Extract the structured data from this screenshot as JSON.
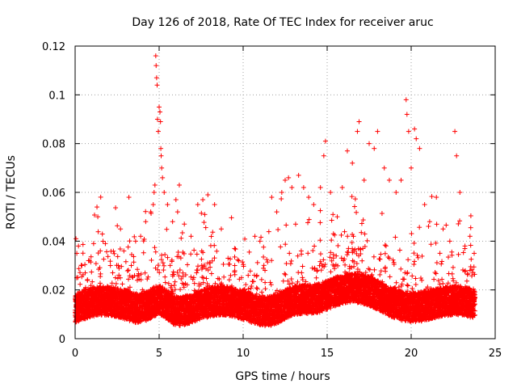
{
  "chart_data": {
    "type": "scatter",
    "title": "Day 126 of 2018, Rate Of TEC Index for receiver aruc",
    "xlabel": "GPS time / hours",
    "ylabel": "ROTI / TECUs",
    "xlim": [
      0,
      25
    ],
    "ylim": [
      0,
      0.12
    ],
    "xticks": [
      "0",
      "5",
      "10",
      "15",
      "20",
      "25"
    ],
    "yticks": [
      "0",
      "0.02",
      "0.04",
      "0.06",
      "0.08",
      "0.1",
      "0.12"
    ],
    "grid": true,
    "marker": "+",
    "color": "#ff0000",
    "data_extent": {
      "x": [
        0,
        23.8
      ]
    },
    "series": [
      {
        "points": [
          [
            0.05,
            0.041
          ],
          [
            0.1,
            0.035
          ],
          [
            0.2,
            0.038
          ],
          [
            0.4,
            0.03
          ],
          [
            0.6,
            0.027
          ],
          [
            0.8,
            0.032
          ],
          [
            1.1,
            0.039
          ],
          [
            1.3,
            0.054
          ],
          [
            1.35,
            0.05
          ],
          [
            1.5,
            0.036
          ],
          [
            1.8,
            0.039
          ],
          [
            2.1,
            0.03
          ],
          [
            2.4,
            0.025
          ],
          [
            2.7,
            0.045
          ],
          [
            2.9,
            0.036
          ],
          [
            3.2,
            0.058
          ],
          [
            3.6,
            0.04
          ],
          [
            3.9,
            0.042
          ],
          [
            4.2,
            0.048
          ],
          [
            4.5,
            0.052
          ],
          [
            4.65,
            0.055
          ],
          [
            4.7,
            0.06
          ],
          [
            4.75,
            0.063
          ],
          [
            4.8,
            0.116
          ],
          [
            4.82,
            0.112
          ],
          [
            4.85,
            0.107
          ],
          [
            4.88,
            0.104
          ],
          [
            4.9,
            0.09
          ],
          [
            4.95,
            0.085
          ],
          [
            5.0,
            0.095
          ],
          [
            5.05,
            0.093
          ],
          [
            5.08,
            0.089
          ],
          [
            5.1,
            0.078
          ],
          [
            5.12,
            0.075
          ],
          [
            5.15,
            0.07
          ],
          [
            5.2,
            0.066
          ],
          [
            5.3,
            0.06
          ],
          [
            5.5,
            0.055
          ],
          [
            5.8,
            0.048
          ],
          [
            6.0,
            0.057
          ],
          [
            6.1,
            0.052
          ],
          [
            6.2,
            0.063
          ],
          [
            6.5,
            0.047
          ],
          [
            6.9,
            0.042
          ],
          [
            7.3,
            0.055
          ],
          [
            7.6,
            0.057
          ],
          [
            7.9,
            0.059
          ],
          [
            8.3,
            0.055
          ],
          [
            8.7,
            0.045
          ],
          [
            9.1,
            0.033
          ],
          [
            9.5,
            0.03
          ],
          [
            9.9,
            0.025
          ],
          [
            10.3,
            0.026
          ],
          [
            10.7,
            0.042
          ],
          [
            11.0,
            0.04
          ],
          [
            11.3,
            0.028
          ],
          [
            11.7,
            0.058
          ],
          [
            12.0,
            0.052
          ],
          [
            12.3,
            0.06
          ],
          [
            12.5,
            0.065
          ],
          [
            12.7,
            0.066
          ],
          [
            12.9,
            0.062
          ],
          [
            13.3,
            0.067
          ],
          [
            13.6,
            0.062
          ],
          [
            13.9,
            0.058
          ],
          [
            14.2,
            0.055
          ],
          [
            14.6,
            0.062
          ],
          [
            14.8,
            0.075
          ],
          [
            14.9,
            0.081
          ],
          [
            15.2,
            0.06
          ],
          [
            15.6,
            0.05
          ],
          [
            15.9,
            0.062
          ],
          [
            16.2,
            0.077
          ],
          [
            16.5,
            0.072
          ],
          [
            16.8,
            0.085
          ],
          [
            16.9,
            0.089
          ],
          [
            17.2,
            0.065
          ],
          [
            17.5,
            0.08
          ],
          [
            17.8,
            0.078
          ],
          [
            18.0,
            0.085
          ],
          [
            18.4,
            0.07
          ],
          [
            18.7,
            0.065
          ],
          [
            19.1,
            0.06
          ],
          [
            19.4,
            0.065
          ],
          [
            19.7,
            0.098
          ],
          [
            19.75,
            0.092
          ],
          [
            19.85,
            0.085
          ],
          [
            20.0,
            0.07
          ],
          [
            20.2,
            0.086
          ],
          [
            20.3,
            0.082
          ],
          [
            20.5,
            0.078
          ],
          [
            20.8,
            0.055
          ],
          [
            21.1,
            0.048
          ],
          [
            21.5,
            0.058
          ],
          [
            21.9,
            0.045
          ],
          [
            22.3,
            0.04
          ],
          [
            22.6,
            0.085
          ],
          [
            22.7,
            0.075
          ],
          [
            22.9,
            0.06
          ],
          [
            23.2,
            0.038
          ],
          [
            23.5,
            0.042
          ],
          [
            23.75,
            0.035
          ]
        ]
      }
    ]
  }
}
